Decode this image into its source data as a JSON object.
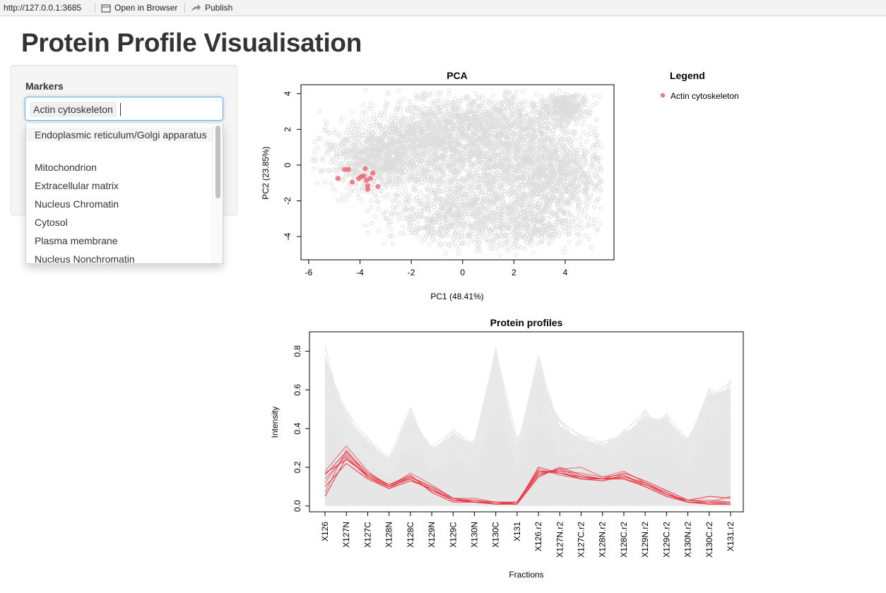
{
  "browser_bar": {
    "url": "http://127.0.0.1:3685",
    "open_in_browser_label": "Open in Browser",
    "publish_label": "Publish"
  },
  "page_title": "Protein Profile Visualisation",
  "sidebar": {
    "markers_label": "Markers",
    "selected_marker": "Actin cytoskeleton",
    "options": [
      "Endoplasmic reticulum/Golgi apparatus",
      "Mitochondrion",
      "Extracellular matrix",
      "Nucleus Chromatin",
      "Cytosol",
      "Plasma membrane",
      "Nucleus Nonchromatin"
    ]
  },
  "colors": {
    "accent_marker": "#e8313f",
    "background_points": "#d9d9d9",
    "focus_border": "#66afe9"
  },
  "legend": {
    "title": "Legend",
    "items": [
      {
        "label": "Actin cytoskeleton",
        "color": "#ef7a84"
      }
    ]
  },
  "chart_data": [
    {
      "type": "scatter",
      "title": "PCA",
      "xlabel": "PC1 (48.41%)",
      "ylabel": "PC2 (23.85%)",
      "xlim": [
        -6.3,
        5.9
      ],
      "ylim": [
        -5.3,
        4.5
      ],
      "xticks": [
        -6,
        -4,
        -2,
        0,
        2,
        4
      ],
      "yticks": [
        -4,
        -2,
        0,
        2,
        4
      ],
      "series": [
        {
          "name": "Actin cytoskeleton",
          "color": "#ef5864",
          "points": [
            [
              -4.6,
              -0.25
            ],
            [
              -4.45,
              -0.25
            ],
            [
              -4.85,
              -0.75
            ],
            [
              -4.3,
              -0.95
            ],
            [
              -4.05,
              -0.75
            ],
            [
              -3.95,
              -0.65
            ],
            [
              -3.85,
              -0.6
            ],
            [
              -3.8,
              -0.2
            ],
            [
              -3.75,
              -0.85
            ],
            [
              -3.7,
              -1.15
            ],
            [
              -3.7,
              -1.35
            ],
            [
              -3.6,
              -0.75
            ],
            [
              -3.5,
              -0.45
            ],
            [
              -3.3,
              -1.2
            ]
          ]
        }
      ]
    },
    {
      "type": "line",
      "title": "Protein profiles",
      "xlabel": "Fractions",
      "ylabel": "Intensity",
      "ylim": [
        -0.03,
        0.9
      ],
      "yticks": [
        "0.0",
        "0.2",
        "0.4",
        "0.6",
        "0.8"
      ],
      "categories": [
        "X126",
        "X127N",
        "X127C",
        "X128N",
        "X128C",
        "X129N",
        "X129C",
        "X130N",
        "X130C",
        "X131",
        "X126.r2",
        "X127N.r2",
        "X127C.r2",
        "X128N.r2",
        "X128C.r2",
        "X129N.r2",
        "X129C.r2",
        "X130N.r2",
        "X130C.r2",
        "X131.r2"
      ],
      "background_envelope": {
        "upper": [
          0.85,
          0.5,
          0.36,
          0.26,
          0.52,
          0.32,
          0.4,
          0.34,
          0.82,
          0.35,
          0.78,
          0.45,
          0.37,
          0.34,
          0.4,
          0.5,
          0.48,
          0.36,
          0.62,
          0.66
        ],
        "lower": [
          0.0,
          0.0,
          0.0,
          0.0,
          0.0,
          0.0,
          0.0,
          0.0,
          0.0,
          0.0,
          0.0,
          0.0,
          0.0,
          0.0,
          0.0,
          0.0,
          0.0,
          0.0,
          0.0,
          0.0
        ]
      },
      "series": [
        {
          "values": [
            0.05,
            0.25,
            0.15,
            0.1,
            0.14,
            0.08,
            0.03,
            0.02,
            0.01,
            0.01,
            0.16,
            0.19,
            0.15,
            0.14,
            0.15,
            0.12,
            0.06,
            0.02,
            0.01,
            0.01
          ]
        },
        {
          "values": [
            0.12,
            0.27,
            0.16,
            0.1,
            0.15,
            0.09,
            0.03,
            0.02,
            0.01,
            0.01,
            0.17,
            0.18,
            0.14,
            0.13,
            0.16,
            0.1,
            0.05,
            0.02,
            0.01,
            0.01
          ]
        },
        {
          "values": [
            0.16,
            0.28,
            0.17,
            0.11,
            0.15,
            0.1,
            0.04,
            0.02,
            0.02,
            0.02,
            0.18,
            0.17,
            0.15,
            0.14,
            0.14,
            0.11,
            0.06,
            0.03,
            0.02,
            0.02
          ]
        },
        {
          "values": [
            0.18,
            0.31,
            0.18,
            0.1,
            0.17,
            0.11,
            0.04,
            0.03,
            0.01,
            0.02,
            0.19,
            0.16,
            0.14,
            0.13,
            0.15,
            0.12,
            0.07,
            0.02,
            0.02,
            0.01
          ]
        },
        {
          "values": [
            0.1,
            0.22,
            0.14,
            0.09,
            0.13,
            0.09,
            0.03,
            0.03,
            0.02,
            0.01,
            0.15,
            0.2,
            0.16,
            0.14,
            0.17,
            0.13,
            0.08,
            0.03,
            0.05,
            0.04
          ]
        },
        {
          "values": [
            0.14,
            0.26,
            0.15,
            0.1,
            0.14,
            0.08,
            0.04,
            0.02,
            0.01,
            0.02,
            0.18,
            0.18,
            0.17,
            0.15,
            0.16,
            0.11,
            0.06,
            0.03,
            0.03,
            0.02
          ]
        },
        {
          "values": [
            0.17,
            0.24,
            0.16,
            0.11,
            0.16,
            0.07,
            0.02,
            0.02,
            0.01,
            0.01,
            0.2,
            0.17,
            0.14,
            0.14,
            0.14,
            0.1,
            0.05,
            0.02,
            0.01,
            0.01
          ]
        },
        {
          "values": [
            0.07,
            0.29,
            0.15,
            0.09,
            0.15,
            0.1,
            0.04,
            0.04,
            0.02,
            0.02,
            0.17,
            0.19,
            0.2,
            0.15,
            0.18,
            0.12,
            0.07,
            0.02,
            0.02,
            0.05
          ]
        }
      ]
    }
  ]
}
